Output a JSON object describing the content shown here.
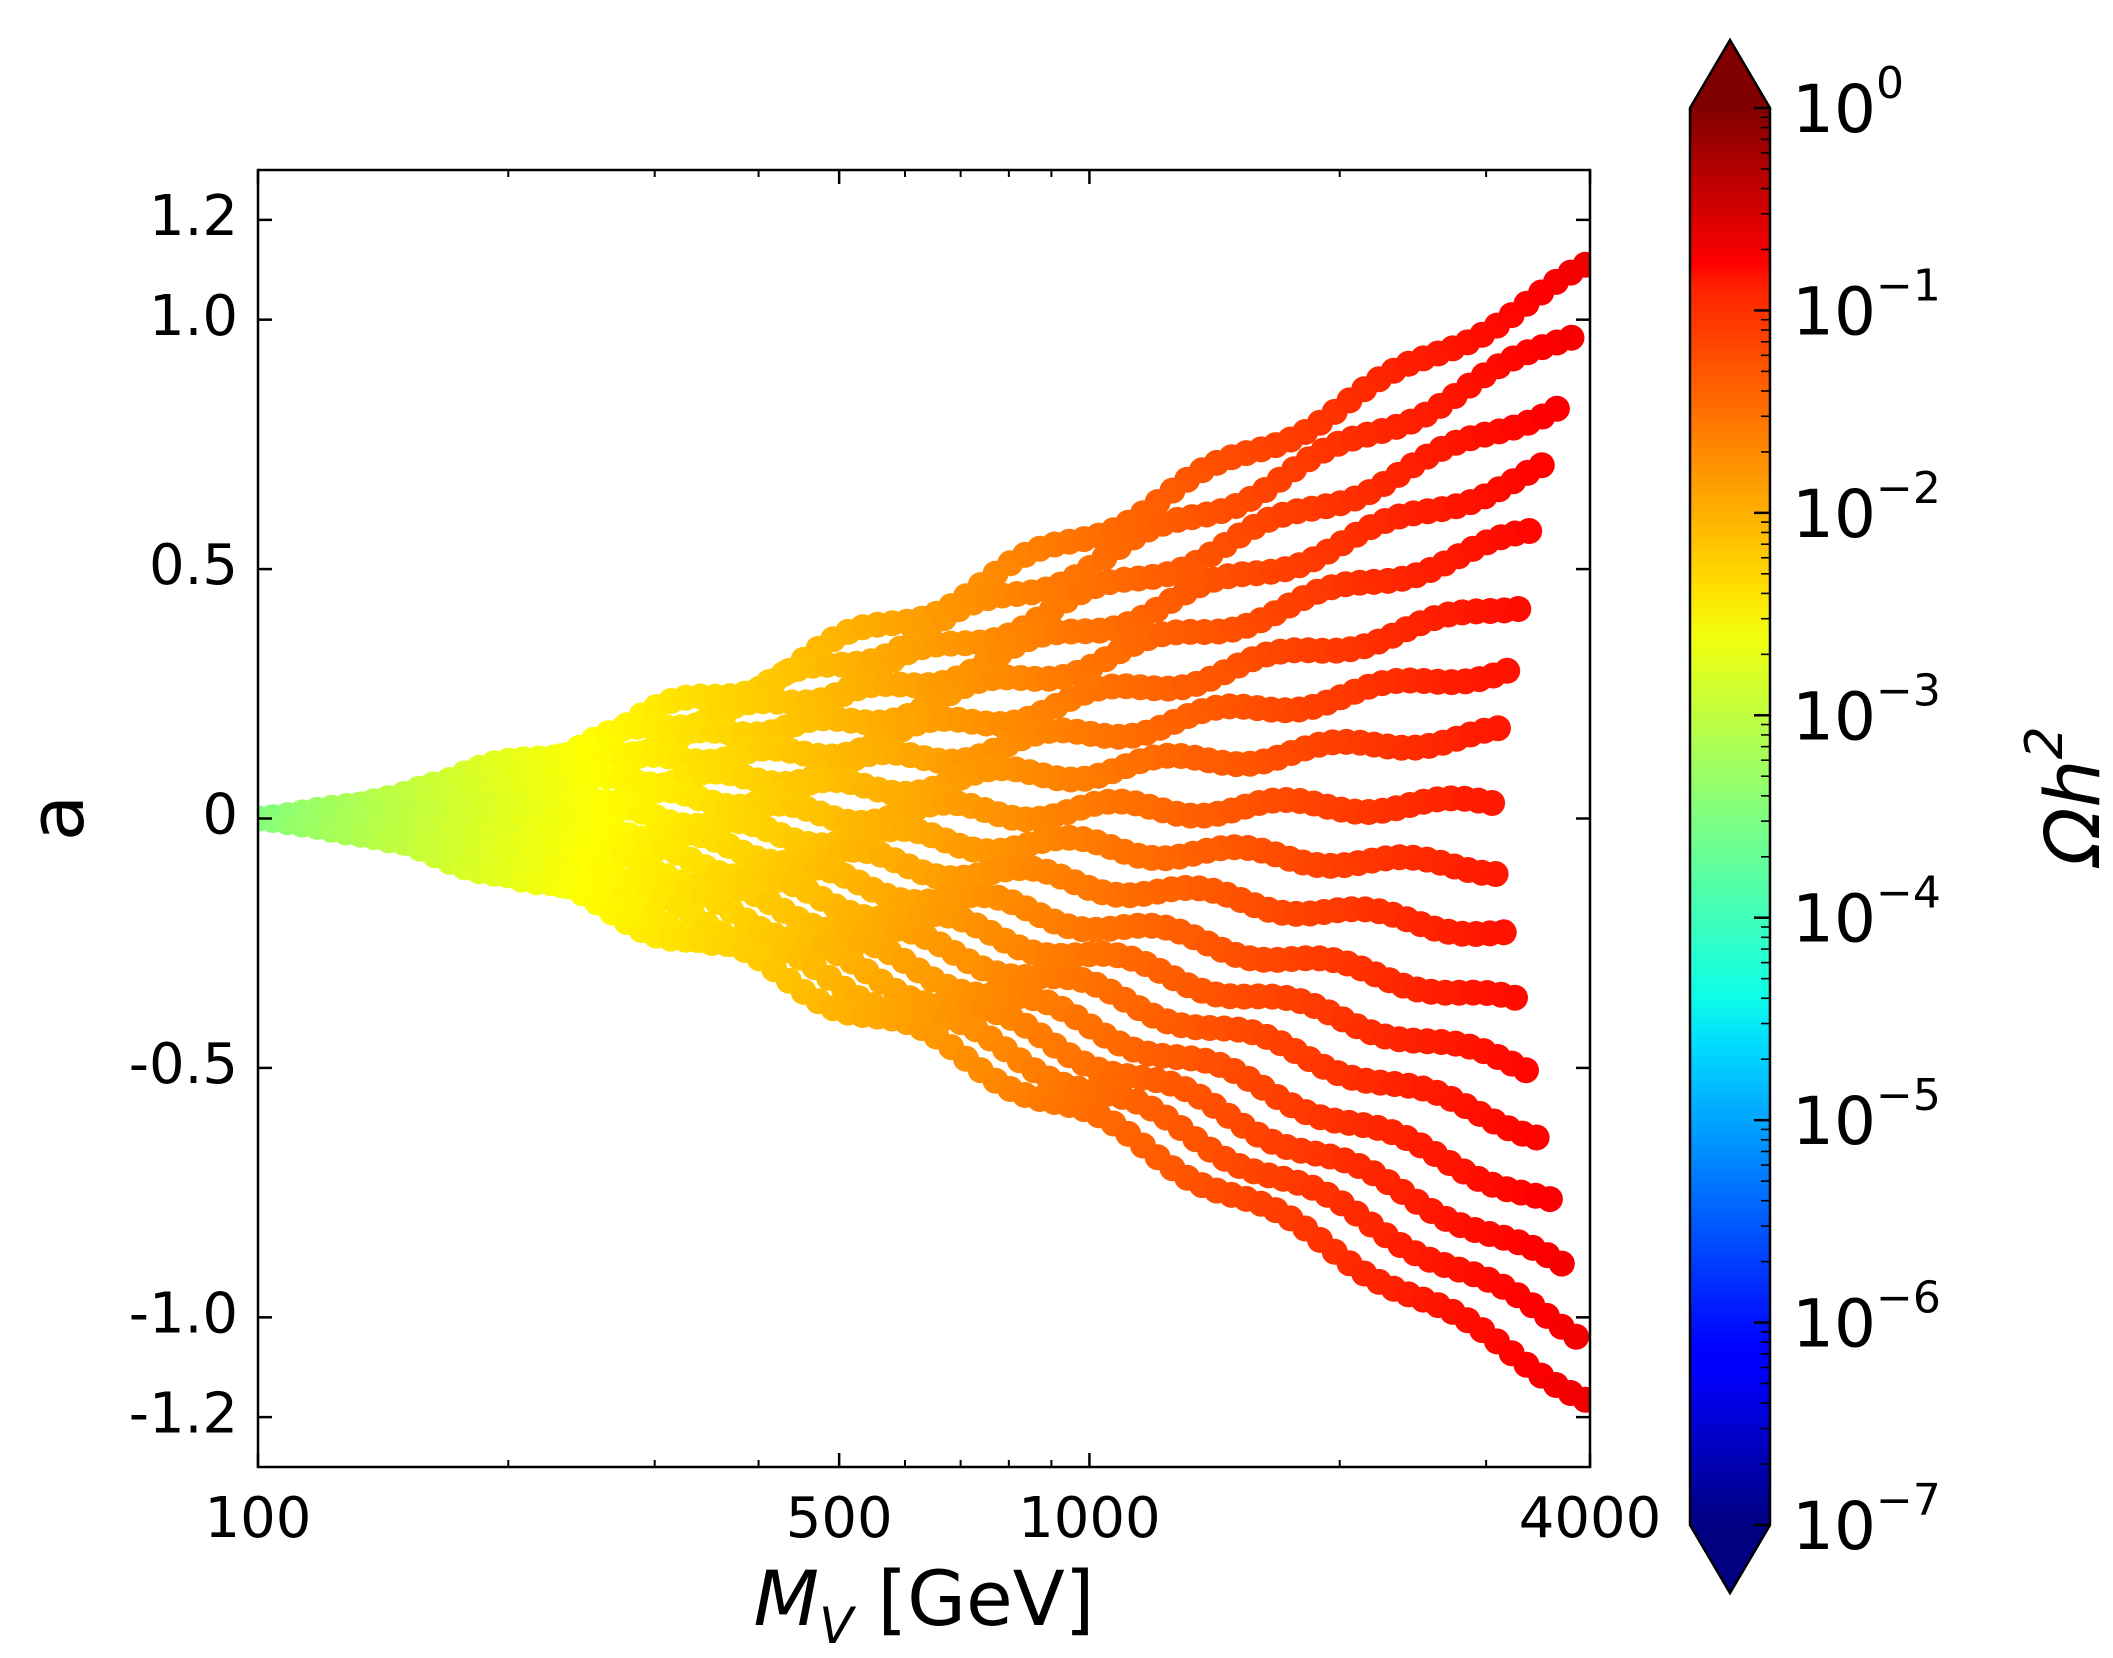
{
  "chart_data": {
    "type": "scatter",
    "title": "",
    "xlabel": "M_V [GeV]",
    "ylabel": "a",
    "xscale": "log",
    "xlim": [
      100,
      4000
    ],
    "ylim": [
      -1.3,
      1.3
    ],
    "xticks": [
      {
        "value": 100,
        "label": "100"
      },
      {
        "value": 500,
        "label": "500"
      },
      {
        "value": 1000,
        "label": "1000"
      },
      {
        "value": 4000,
        "label": "4000"
      }
    ],
    "yticks": [
      {
        "value": 1.2,
        "label": "1.2"
      },
      {
        "value": 1.0,
        "label": "1.0"
      },
      {
        "value": 0.5,
        "label": "0.5"
      },
      {
        "value": 0,
        "label": "0"
      },
      {
        "value": -0.5,
        "label": "-0.5"
      },
      {
        "value": -1.0,
        "label": "-1.0"
      },
      {
        "value": -1.2,
        "label": "-1.2"
      }
    ],
    "colorbar": {
      "label": "Ωh",
      "label_exponent": "2",
      "scale": "log",
      "range": [
        1e-07,
        1
      ],
      "colormap": "jet",
      "extend": "both",
      "ticks": [
        {
          "value": 0,
          "base": "10",
          "exp": "0"
        },
        {
          "value": -1,
          "base": "10",
          "exp": "−1"
        },
        {
          "value": -2,
          "base": "10",
          "exp": "−2"
        },
        {
          "value": -3,
          "base": "10",
          "exp": "−3"
        },
        {
          "value": -4,
          "base": "10",
          "exp": "−4"
        },
        {
          "value": -5,
          "base": "10",
          "exp": "−5"
        },
        {
          "value": -6,
          "base": "10",
          "exp": "−6"
        },
        {
          "value": -7,
          "base": "10",
          "exp": "−7"
        }
      ]
    },
    "series": [
      {
        "name": "a=+1.10",
        "a_end": 1.1,
        "mv_start": 100,
        "mv_end": 3950,
        "omega_at_start": 0.0003,
        "omega_at_end": 0.16
      },
      {
        "name": "a=+0.97",
        "a_end": 0.97,
        "mv_start": 100,
        "mv_end": 3800,
        "omega_at_start": 0.0003,
        "omega_at_end": 0.15
      },
      {
        "name": "a=+0.83",
        "a_end": 0.83,
        "mv_start": 100,
        "mv_end": 3650,
        "omega_at_start": 0.0003,
        "omega_at_end": 0.14
      },
      {
        "name": "a=+0.70",
        "a_end": 0.7,
        "mv_start": 100,
        "mv_end": 3500,
        "omega_at_start": 0.0003,
        "omega_at_end": 0.13
      },
      {
        "name": "a=+0.57",
        "a_end": 0.57,
        "mv_start": 100,
        "mv_end": 3380,
        "omega_at_start": 0.0003,
        "omega_at_end": 0.12
      },
      {
        "name": "a=+0.43",
        "a_end": 0.43,
        "mv_start": 100,
        "mv_end": 3280,
        "omega_at_start": 0.0003,
        "omega_at_end": 0.11
      },
      {
        "name": "a=+0.30",
        "a_end": 0.3,
        "mv_start": 100,
        "mv_end": 3180,
        "omega_at_start": 0.0003,
        "omega_at_end": 0.1
      },
      {
        "name": "a=+0.17",
        "a_end": 0.17,
        "mv_start": 100,
        "mv_end": 3100,
        "omega_at_start": 0.0003,
        "omega_at_end": 0.09
      },
      {
        "name": "a=+0.03",
        "a_end": 0.03,
        "mv_start": 100,
        "mv_end": 3050,
        "omega_at_start": 0.0003,
        "omega_at_end": 0.09
      },
      {
        "name": "a=-0.10",
        "a_end": -0.1,
        "mv_start": 100,
        "mv_end": 3080,
        "omega_at_start": 0.0003,
        "omega_at_end": 0.09
      },
      {
        "name": "a=-0.23",
        "a_end": -0.23,
        "mv_start": 100,
        "mv_end": 3150,
        "omega_at_start": 0.0003,
        "omega_at_end": 0.1
      },
      {
        "name": "a=-0.37",
        "a_end": -0.37,
        "mv_start": 100,
        "mv_end": 3250,
        "omega_at_start": 0.0003,
        "omega_at_end": 0.11
      },
      {
        "name": "a=-0.50",
        "a_end": -0.5,
        "mv_start": 100,
        "mv_end": 3350,
        "omega_at_start": 0.0003,
        "omega_at_end": 0.12
      },
      {
        "name": "a=-0.63",
        "a_end": -0.63,
        "mv_start": 100,
        "mv_end": 3450,
        "omega_at_start": 0.0003,
        "omega_at_end": 0.13
      },
      {
        "name": "a=-0.77",
        "a_end": -0.77,
        "mv_start": 100,
        "mv_end": 3580,
        "omega_at_start": 0.0003,
        "omega_at_end": 0.14
      },
      {
        "name": "a=-0.90",
        "a_end": -0.9,
        "mv_start": 100,
        "mv_end": 3700,
        "omega_at_start": 0.0003,
        "omega_at_end": 0.15
      },
      {
        "name": "a=-1.03",
        "a_end": -1.03,
        "mv_start": 100,
        "mv_end": 3850,
        "omega_at_start": 0.0003,
        "omega_at_end": 0.16
      },
      {
        "name": "a=-1.16",
        "a_end": -1.16,
        "mv_start": 100,
        "mv_end": 3950,
        "omega_at_start": 0.0003,
        "omega_at_end": 0.17
      }
    ]
  }
}
